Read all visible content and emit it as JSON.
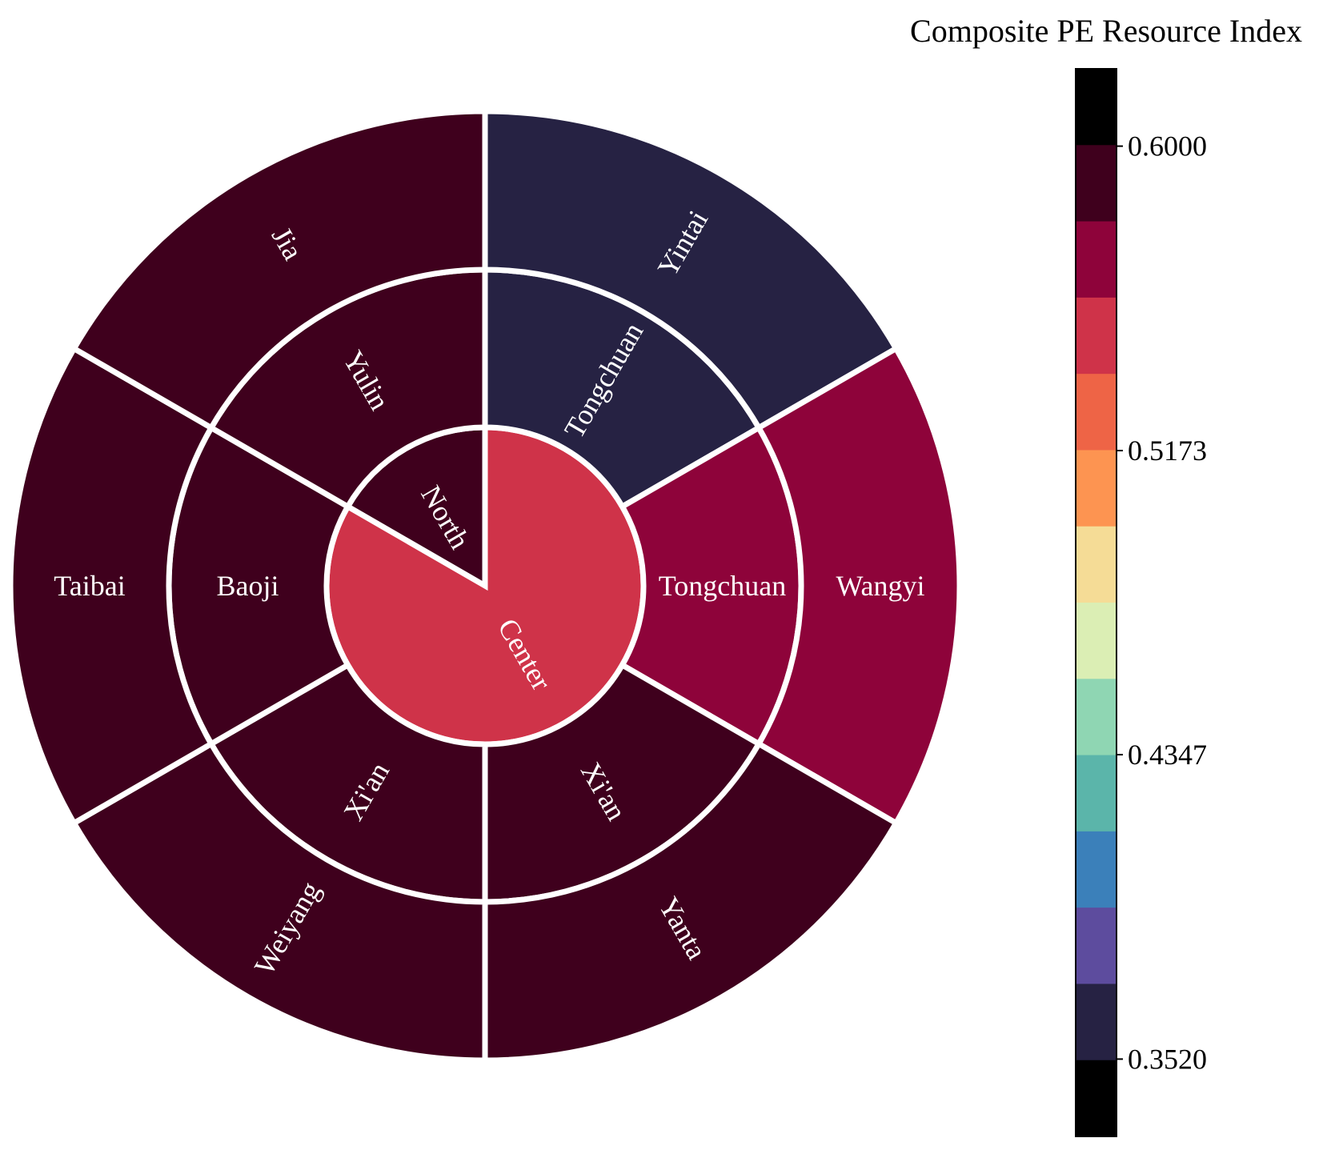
{
  "chart_data": {
    "type": "sunburst",
    "colorbar": {
      "title": "Composite PE Resource Index",
      "ticks": [
        {
          "value": 0.6,
          "label": "0.6000"
        },
        {
          "value": 0.5173,
          "label": "0.5173"
        },
        {
          "value": 0.4347,
          "label": "0.4347"
        },
        {
          "value": 0.352,
          "label": "0.3520"
        }
      ],
      "range": [
        0.331,
        0.621
      ],
      "bands": [
        "#000000",
        "#3f001d",
        "#8e033a",
        "#cf3349",
        "#ee6446",
        "#fd9451",
        "#f5dc96",
        "#dbeeb4",
        "#8fd6b3",
        "#5bb5aa",
        "#3b80ba",
        "#5d4c9e",
        "#262243",
        "#000000"
      ]
    },
    "rings": [
      {
        "level": 1,
        "segments": [
          {
            "label": "North",
            "start": -60,
            "end": 0,
            "color": "#3f001d"
          },
          {
            "label": "Center",
            "start": 0,
            "end": 300,
            "color": "#cf3349"
          }
        ]
      },
      {
        "level": 2,
        "segments": [
          {
            "label": "Tongchuan",
            "start": 0,
            "end": 60,
            "color": "#262243"
          },
          {
            "label": "Tongchuan",
            "start": 60,
            "end": 120,
            "color": "#8e033a"
          },
          {
            "label": "Xi'an",
            "start": 120,
            "end": 180,
            "color": "#3f001d"
          },
          {
            "label": "Xi'an",
            "start": 180,
            "end": 240,
            "color": "#3f001d"
          },
          {
            "label": "Baoji",
            "start": 240,
            "end": 300,
            "color": "#3f001d"
          },
          {
            "label": "Yulin",
            "start": 300,
            "end": 360,
            "color": "#3f001d"
          }
        ]
      },
      {
        "level": 3,
        "segments": [
          {
            "label": "Yintai",
            "start": 0,
            "end": 60,
            "color": "#262243"
          },
          {
            "label": "Wangyi",
            "start": 60,
            "end": 120,
            "color": "#8e033a"
          },
          {
            "label": "Yanta",
            "start": 120,
            "end": 180,
            "color": "#3f001d"
          },
          {
            "label": "Weiyang",
            "start": 180,
            "end": 240,
            "color": "#3f001d"
          },
          {
            "label": "Taibai",
            "start": 240,
            "end": 300,
            "color": "#3f001d"
          },
          {
            "label": "Jia",
            "start": 300,
            "end": 360,
            "color": "#3f001d"
          }
        ]
      }
    ]
  }
}
